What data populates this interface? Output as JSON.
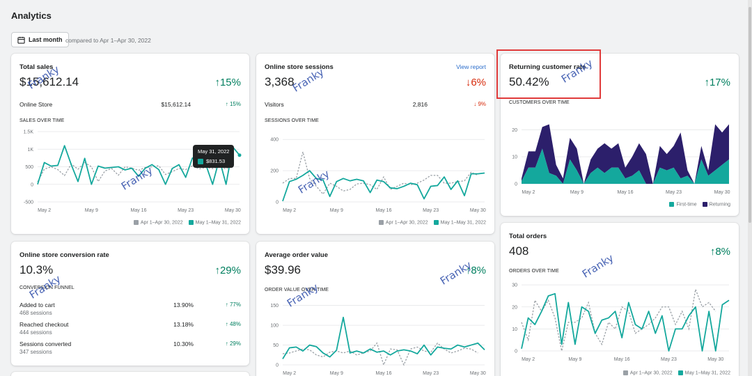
{
  "page": {
    "title": "Analytics"
  },
  "toolbar": {
    "date_button_label": "Last month",
    "compare_text": "compared to Apr 1–Apr 30, 2022",
    "date_icon": "calendar-icon"
  },
  "watermark_text": "Franky",
  "colors": {
    "current": "#14a89d",
    "previous": "#9aa0a6",
    "returning": "#2c1f6b",
    "up": "#007f5f",
    "down": "#d72c0d"
  },
  "legend": {
    "previous": "Apr 1–Apr 30, 2022",
    "current": "May 1–May 31, 2022",
    "first_time": "First-time",
    "returning": "Returning"
  },
  "total_sales": {
    "title": "Total sales",
    "value": "$15,612.14",
    "delta": "15%",
    "delta_arrow": "↑",
    "row_label": "Online Store",
    "row_value": "$15,612.14",
    "row_delta": "15%",
    "chart_title": "SALES OVER TIME",
    "tooltip": {
      "date": "May 31, 2022",
      "value": "$831.53"
    }
  },
  "sessions": {
    "title": "Online store sessions",
    "link": "View report",
    "value": "3,368",
    "delta": "6%",
    "delta_arrow": "↓",
    "row_label": "Visitors",
    "row_value": "2,816",
    "row_delta": "9%",
    "row_arrow": "↓",
    "chart_title": "SESSIONS OVER TIME"
  },
  "returning": {
    "title": "Returning customer rate",
    "value": "50.42%",
    "delta": "17%",
    "delta_arrow": "↑",
    "chart_title": "CUSTOMERS OVER TIME"
  },
  "conversion": {
    "title": "Online store conversion rate",
    "value": "10.3%",
    "delta": "29%",
    "delta_arrow": "↑",
    "chart_title": "CONVERSION FUNNEL",
    "rows": [
      {
        "label": "Added to cart",
        "sub": "468 sessions",
        "pct": "13.90%",
        "delta": "77%"
      },
      {
        "label": "Reached checkout",
        "sub": "444 sessions",
        "pct": "13.18%",
        "delta": "48%"
      },
      {
        "label": "Sessions converted",
        "sub": "347 sessions",
        "pct": "10.30%",
        "delta": "29%"
      }
    ]
  },
  "aov": {
    "title": "Average order value",
    "value": "$39.96",
    "delta": "8%",
    "delta_arrow": "↑",
    "chart_title": "ORDER VALUE OVER TIME"
  },
  "orders": {
    "title": "Total orders",
    "value": "408",
    "delta": "8%",
    "delta_arrow": "↑",
    "chart_title": "ORDERS OVER TIME"
  },
  "chart_data": [
    {
      "id": "sales",
      "type": "line",
      "x_ticks": [
        "May 2",
        "May 9",
        "May 16",
        "May 23",
        "May 30"
      ],
      "y_ticks": [
        "1.5K",
        "1K",
        "500",
        "0",
        "-500"
      ],
      "ylim": [
        -500,
        1500
      ],
      "series": [
        {
          "name": "May 1–May 31, 2022",
          "values": [
            0,
            620,
            520,
            540,
            1100,
            560,
            80,
            740,
            0,
            520,
            460,
            480,
            500,
            410,
            460,
            230,
            460,
            560,
            420,
            0,
            450,
            560,
            200,
            750,
            620,
            560,
            0,
            720,
            0,
            1060,
            830
          ]
        },
        {
          "name": "Apr 1–Apr 30, 2022",
          "values": [
            70,
            430,
            500,
            420,
            250,
            580,
            430,
            620,
            500,
            80,
            380,
            450,
            260,
            500,
            460,
            400,
            480,
            500,
            530,
            280,
            360,
            450,
            420,
            530,
            440,
            480,
            450,
            500,
            440,
            560
          ]
        }
      ]
    },
    {
      "id": "sessions",
      "type": "line",
      "x_ticks": [
        "May 2",
        "May 9",
        "May 16",
        "May 23",
        "May 30"
      ],
      "y_ticks": [
        "400",
        "200",
        "0"
      ],
      "ylim": [
        0,
        450
      ],
      "series": [
        {
          "name": "May 1–May 31, 2022",
          "values": [
            5,
            130,
            145,
            170,
            200,
            150,
            140,
            35,
            130,
            150,
            135,
            145,
            135,
            60,
            140,
            130,
            90,
            85,
            100,
            120,
            110,
            20,
            100,
            105,
            160,
            80,
            135,
            40,
            180,
            180,
            185
          ]
        },
        {
          "name": "Apr 1–Apr 30, 2022",
          "values": [
            120,
            150,
            150,
            320,
            150,
            100,
            50,
            120,
            100,
            70,
            80,
            115,
            120,
            110,
            80,
            160,
            80,
            100,
            120,
            110,
            120,
            140,
            170,
            170,
            120,
            120,
            130,
            135,
            190,
            170
          ]
        }
      ]
    },
    {
      "id": "customers",
      "type": "area",
      "x_ticks": [
        "May 2",
        "May 9",
        "May 16",
        "May 23",
        "May 30"
      ],
      "y_ticks": [
        "20",
        "10",
        "0"
      ],
      "ylim": [
        0,
        26
      ],
      "series": [
        {
          "name": "First-time",
          "values": [
            1,
            6,
            6,
            13,
            4,
            3,
            0,
            9,
            5,
            0,
            4,
            6,
            4,
            6,
            6,
            2,
            3,
            5,
            0,
            0,
            6,
            5,
            6,
            2,
            3,
            0,
            9,
            3,
            5,
            7,
            9
          ]
        },
        {
          "name": "Returning",
          "values": [
            1,
            6,
            6,
            8,
            18,
            4,
            2,
            8,
            8,
            0,
            5,
            7,
            11,
            7,
            9,
            4,
            7,
            10,
            11,
            0,
            8,
            6,
            8,
            17,
            2,
            0,
            5,
            2,
            17,
            12,
            13
          ]
        }
      ]
    },
    {
      "id": "aov",
      "type": "line",
      "x_ticks": [
        "May 2",
        "May 9",
        "May 16",
        "May 23",
        "May 30"
      ],
      "y_ticks": [
        "150",
        "100",
        "50",
        "0"
      ],
      "ylim": [
        0,
        160
      ],
      "series": [
        {
          "name": "May 1–May 31, 2022",
          "values": [
            15,
            43,
            45,
            35,
            50,
            46,
            30,
            20,
            37,
            120,
            30,
            35,
            30,
            40,
            32,
            35,
            25,
            35,
            38,
            35,
            28,
            50,
            25,
            45,
            42,
            40,
            50,
            45,
            50,
            55,
            38
          ]
        },
        {
          "name": "Apr 1–Apr 30, 2022",
          "values": [
            28,
            30,
            35,
            40,
            38,
            25,
            20,
            32,
            35,
            30,
            35,
            25,
            30,
            35,
            55,
            0,
            40,
            38,
            0,
            40,
            45,
            35,
            32,
            55,
            40,
            30,
            35,
            42,
            40,
            30
          ]
        }
      ]
    },
    {
      "id": "orders",
      "type": "line",
      "x_ticks": [
        "May 2",
        "May 9",
        "May 16",
        "May 23",
        "May 30"
      ],
      "y_ticks": [
        "30",
        "20",
        "10",
        "0"
      ],
      "ylim": [
        0,
        31
      ],
      "series": [
        {
          "name": "May 1–May 31, 2022",
          "values": [
            1,
            15,
            12,
            18,
            25,
            26,
            3,
            22,
            3,
            20,
            18,
            8,
            14,
            15,
            18,
            6,
            22,
            12,
            10,
            18,
            8,
            16,
            0,
            10,
            10,
            16,
            20,
            0,
            18,
            0,
            21,
            23
          ]
        },
        {
          "name": "Apr 1–Apr 30, 2022",
          "values": [
            13,
            5,
            23,
            18,
            23,
            15,
            0,
            13,
            13,
            15,
            22,
            8,
            3,
            13,
            10,
            20,
            18,
            8,
            10,
            12,
            15,
            20,
            20,
            12,
            18,
            10,
            28,
            20,
            22,
            18
          ]
        }
      ]
    }
  ]
}
